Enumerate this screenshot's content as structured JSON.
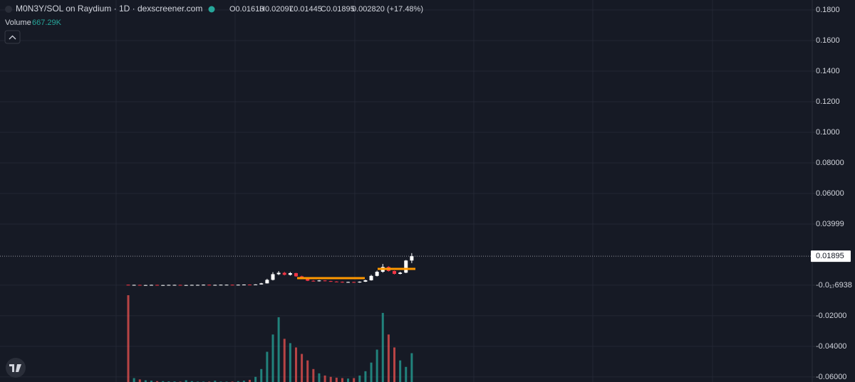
{
  "chart_data": {
    "type": "candlestick",
    "title": "M0N3Y/SOL on Raydium · 1D · dexscreener.com",
    "ohlc_legend": [
      "O0.01613",
      "H0.02097",
      "L0.01445",
      "C0.01895",
      "0.002820 (+17.48%)"
    ],
    "up_color": "#ffffff",
    "down_color": "#f23645",
    "volume_up_color": "#26a69a",
    "volume_down_color": "#ef5350",
    "ylim": [
      -0.0633,
      0.1865
    ],
    "yticks": [
      {
        "value": 0.18,
        "label": "0.1800"
      },
      {
        "value": 0.16,
        "label": "0.1600"
      },
      {
        "value": 0.14,
        "label": "0.1400"
      },
      {
        "value": 0.12,
        "label": "0.1200"
      },
      {
        "value": 0.1,
        "label": "0.1000"
      },
      {
        "value": 0.08,
        "label": "0.08000"
      },
      {
        "value": 0.06,
        "label": "0.06000"
      },
      0.03999,
      {
        "value": -6.938e-18,
        "label": "-0.0₁₇6938"
      },
      {
        "value": -0.02,
        "label": "-0.02000"
      },
      {
        "value": -0.04,
        "label": "-0.04000"
      },
      {
        "value": -0.06,
        "label": "-0.06000"
      }
    ],
    "grid": true,
    "categories": [
      null,
      null,
      null,
      null,
      null,
      null,
      null,
      null,
      null,
      null,
      null,
      null,
      null,
      null,
      null,
      null,
      null,
      null,
      null,
      null,
      null,
      null,
      null,
      null,
      null,
      null,
      null,
      null,
      null,
      null,
      null,
      null,
      null,
      null,
      null,
      null,
      null,
      null,
      null,
      null,
      null,
      null,
      null,
      null,
      null,
      null,
      null,
      null,
      null,
      null
    ],
    "open": [
      0.0003,
      0.0002,
      0.0002,
      0.0001,
      0.0001,
      0.0002,
      0.0001,
      0.0001,
      0.0002,
      0.0002,
      0.0001,
      0.0001,
      0.0002,
      0.0002,
      0.0003,
      0.0002,
      0.0002,
      0.0003,
      0.0003,
      0.0002,
      0.0003,
      0.0004,
      0.0003,
      0.0005,
      0.0012,
      0.0035,
      0.0072,
      0.0081,
      0.0068,
      0.0079,
      0.0058,
      0.0041,
      0.0029,
      0.0026,
      0.0031,
      0.0027,
      0.0024,
      0.0022,
      0.0019,
      0.0021,
      0.0018,
      0.0023,
      0.0032,
      0.0061,
      0.0088,
      0.0119,
      0.0093,
      0.0074,
      0.0082,
      0.01613
    ],
    "high": [
      0.0004,
      0.0003,
      0.0003,
      0.0002,
      0.0003,
      0.0003,
      0.0002,
      0.0003,
      0.0003,
      0.0003,
      0.0002,
      0.0003,
      0.0003,
      0.0004,
      0.0004,
      0.0003,
      0.0004,
      0.0004,
      0.0004,
      0.0004,
      0.0005,
      0.0005,
      0.0006,
      0.0015,
      0.0042,
      0.0085,
      0.0092,
      0.0088,
      0.0086,
      0.0081,
      0.0062,
      0.0045,
      0.0033,
      0.0034,
      0.0033,
      0.0029,
      0.0026,
      0.0024,
      0.0023,
      0.0023,
      0.0025,
      0.0036,
      0.0068,
      0.0095,
      0.0139,
      0.0124,
      0.0096,
      0.0088,
      0.0165,
      0.02097
    ],
    "low": [
      0.0001,
      0.0001,
      0.0001,
      0,
      0.0001,
      0.0001,
      0,
      0.0001,
      0.0001,
      0.0001,
      0,
      0.0001,
      0.0001,
      0.0002,
      0.0002,
      0.0001,
      0.0002,
      0.0002,
      0.0002,
      0.0002,
      0.0002,
      0.0003,
      0.0003,
      0.0004,
      0.0011,
      0.0031,
      0.0066,
      0.0064,
      0.0063,
      0.0055,
      0.0039,
      0.0027,
      0.0024,
      0.0024,
      0.0025,
      0.0022,
      0.002,
      0.0017,
      0.0017,
      0.0016,
      0.0016,
      0.0021,
      0.003,
      0.0057,
      0.0082,
      0.0089,
      0.007,
      0.0071,
      0.0079,
      0.01445
    ],
    "close": [
      0.0002,
      0.0002,
      0.0001,
      0.0001,
      0.0002,
      0.0001,
      0.0001,
      0.0002,
      0.0002,
      0.0001,
      0.0001,
      0.0002,
      0.0002,
      0.0003,
      0.0002,
      0.0002,
      0.0003,
      0.0003,
      0.0002,
      0.0003,
      0.0004,
      0.0003,
      0.0005,
      0.0012,
      0.0035,
      0.0072,
      0.0081,
      0.0068,
      0.0079,
      0.0058,
      0.0041,
      0.0029,
      0.0026,
      0.0031,
      0.0027,
      0.0024,
      0.0022,
      0.0019,
      0.0021,
      0.0018,
      0.0023,
      0.0032,
      0.0061,
      0.0088,
      0.0119,
      0.0093,
      0.0074,
      0.0082,
      0.01613,
      0.01895
    ],
    "volume": {
      "name": "Volume",
      "last_label": "667.29K",
      "values": [
        2010000,
        90000,
        60000,
        40000,
        30000,
        20000,
        20000,
        15000,
        15000,
        10000,
        40000,
        20000,
        10000,
        10000,
        10000,
        30000,
        10000,
        10000,
        10000,
        20000,
        30000,
        50000,
        120000,
        300000,
        700000,
        1100000,
        1500000,
        1000000,
        900000,
        800000,
        650000,
        500000,
        300000,
        200000,
        150000,
        120000,
        100000,
        90000,
        80000,
        90000,
        150000,
        250000,
        450000,
        750000,
        1600000,
        1100000,
        800000,
        500000,
        350000,
        667290
      ]
    }
  }
}
